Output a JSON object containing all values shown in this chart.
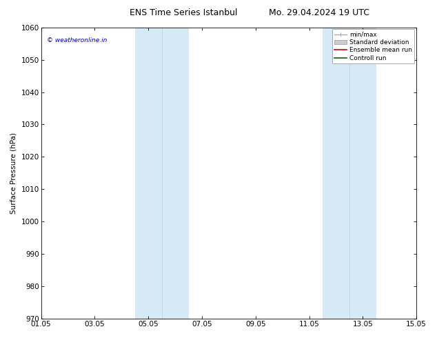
{
  "title_left": "ENS Time Series Istanbul",
  "title_right": "Mo. 29.04.2024 19 UTC",
  "ylabel": "Surface Pressure (hPa)",
  "ylim": [
    970,
    1060
  ],
  "yticks": [
    970,
    980,
    990,
    1000,
    1010,
    1020,
    1030,
    1040,
    1050,
    1060
  ],
  "xlim": [
    0,
    14
  ],
  "xtick_labels": [
    "01.05",
    "03.05",
    "05.05",
    "07.05",
    "09.05",
    "11.05",
    "13.05",
    "15.05"
  ],
  "xtick_positions": [
    0,
    2,
    4,
    6,
    8,
    10,
    12,
    14
  ],
  "shaded_bands": [
    {
      "x_start": 3.5,
      "x_end": 4.5,
      "color": "#d6eaf5"
    },
    {
      "x_start": 4.5,
      "x_end": 5.5,
      "color": "#d6eaf5"
    },
    {
      "x_start": 10.5,
      "x_end": 11.5,
      "color": "#d6eaf5"
    },
    {
      "x_start": 11.5,
      "x_end": 12.5,
      "color": "#d6eaf5"
    }
  ],
  "band_dividers": [
    4.5,
    11.5
  ],
  "watermark_text": "© weatheronline.in",
  "watermark_color": "#0000bb",
  "bg_color": "#ffffff",
  "legend_entries": [
    {
      "label": "min/max",
      "color_line": "#aaaaaa"
    },
    {
      "label": "Standard deviation",
      "color_box": "#cccccc"
    },
    {
      "label": "Ensemble mean run",
      "color_line": "#cc0000"
    },
    {
      "label": "Controll run",
      "color_line": "#006600"
    }
  ],
  "figsize": [
    6.34,
    4.9
  ],
  "dpi": 100,
  "title_fontsize": 9,
  "axis_fontsize": 7.5,
  "tick_fontsize": 7.5,
  "ylabel_fontsize": 7.5
}
